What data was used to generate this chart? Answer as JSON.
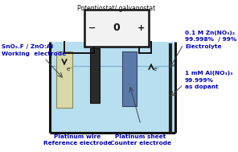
{
  "bg_color": "#ffffff",
  "title": "Potentiostat/ galvanostat",
  "tank_fill": "#b8dff0",
  "tank_outline": "#111111",
  "potentiostat_fill": "#f2f2f2",
  "potentiostat_outline": "#111111",
  "working_electrode_color": "#d8d8a8",
  "reference_electrode_color": "#2a2a2a",
  "counter_electrode_color": "#5a7aaa",
  "wire_color": "#111111",
  "blue_wire_color": "#1a3a8a",
  "text_blue": "#0000bb",
  "text_black": "#111111",
  "label_working": "SnO₂.F / ZnO:Al\nWorking  electrode",
  "label_ref_bottom": "Platinum wire\nReference electrode",
  "label_ctr_bottom": "Platinum sheet\nCounter electrode",
  "label_right1": "0.1 M Zn(NO₃)₂\n99.998%  / 99%\nElectrolyte",
  "label_right2": "1 mM Al(NO₃)₃\n99.999%\nas dopant"
}
